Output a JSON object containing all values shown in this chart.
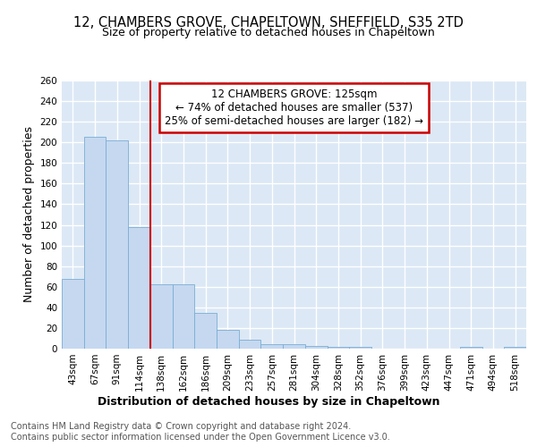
{
  "title": "12, CHAMBERS GROVE, CHAPELTOWN, SHEFFIELD, S35 2TD",
  "subtitle": "Size of property relative to detached houses in Chapeltown",
  "xlabel": "Distribution of detached houses by size in Chapeltown",
  "ylabel": "Number of detached properties",
  "categories": [
    "43sqm",
    "67sqm",
    "91sqm",
    "114sqm",
    "138sqm",
    "162sqm",
    "186sqm",
    "209sqm",
    "233sqm",
    "257sqm",
    "281sqm",
    "304sqm",
    "328sqm",
    "352sqm",
    "376sqm",
    "399sqm",
    "423sqm",
    "447sqm",
    "471sqm",
    "494sqm",
    "518sqm"
  ],
  "values": [
    68,
    205,
    202,
    118,
    62,
    62,
    35,
    18,
    9,
    4,
    4,
    3,
    2,
    2,
    0,
    0,
    0,
    0,
    2,
    0,
    2
  ],
  "bar_color": "#c5d8f0",
  "bar_edge_color": "#7aadd4",
  "vline_x": 3.5,
  "vline_color": "#cc0000",
  "annotation_text": "12 CHAMBERS GROVE: 125sqm\n← 74% of detached houses are smaller (537)\n25% of semi-detached houses are larger (182) →",
  "annotation_box_color": "#ffffff",
  "annotation_box_edge_color": "#cc0000",
  "ylim": [
    0,
    260
  ],
  "yticks": [
    0,
    20,
    40,
    60,
    80,
    100,
    120,
    140,
    160,
    180,
    200,
    220,
    240,
    260
  ],
  "footer_text": "Contains HM Land Registry data © Crown copyright and database right 2024.\nContains public sector information licensed under the Open Government Licence v3.0.",
  "bg_color": "#ffffff",
  "plot_bg_color": "#dce8f5",
  "grid_color": "#ffffff",
  "title_fontsize": 10.5,
  "subtitle_fontsize": 9,
  "axis_label_fontsize": 9,
  "tick_fontsize": 7.5,
  "footer_fontsize": 7,
  "annotation_fontsize": 8.5
}
